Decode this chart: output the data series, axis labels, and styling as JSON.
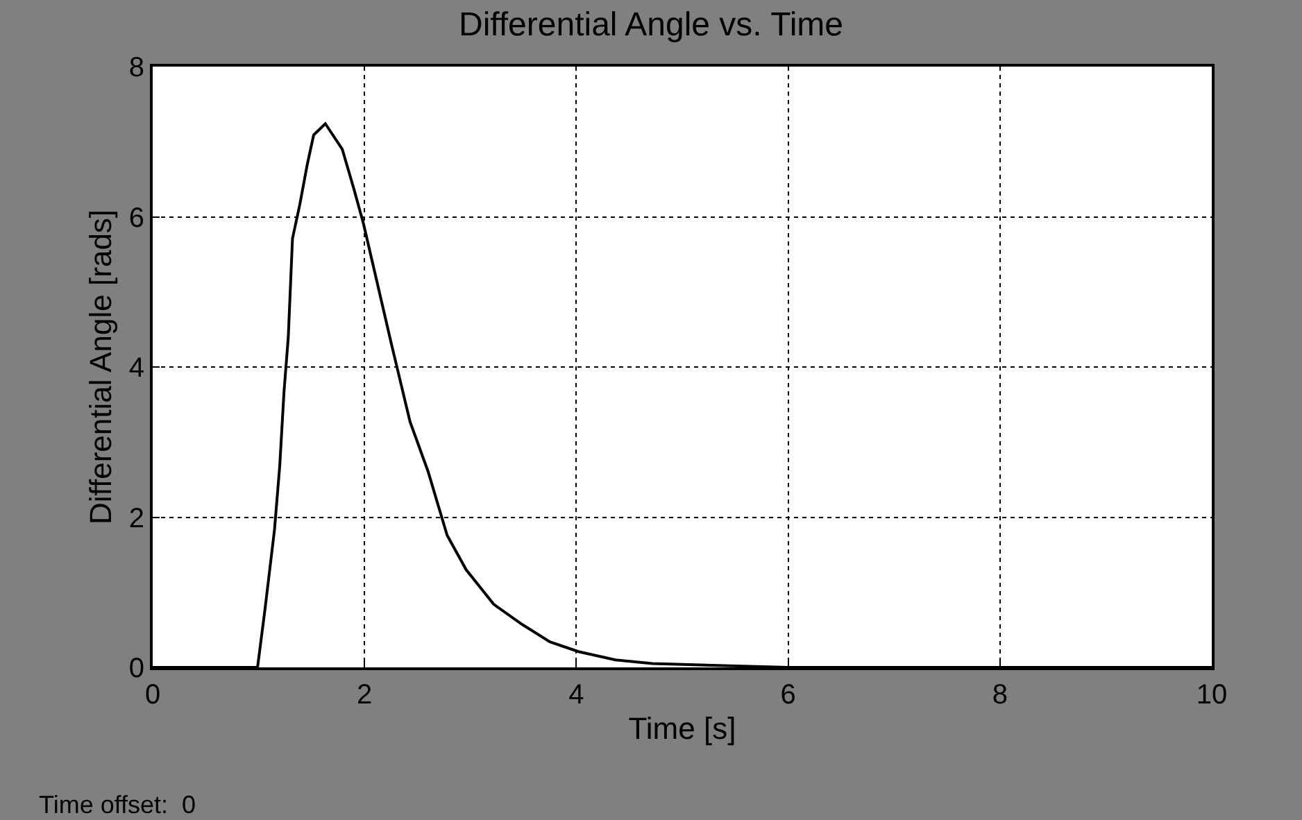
{
  "chart_data": {
    "type": "line",
    "title": "Differential Angle vs. Time",
    "xlabel": "Time [s]",
    "ylabel": "Differential Angle [rads]",
    "annotations": [
      "Time offset:  0"
    ],
    "x": [
      0,
      0.99,
      1.06,
      1.15,
      1.2,
      1.24,
      1.28,
      1.32,
      1.39,
      1.46,
      1.52,
      1.63,
      1.79,
      1.9,
      1.99,
      2.12,
      2.25,
      2.43,
      2.6,
      2.78,
      2.96,
      3.22,
      3.49,
      3.75,
      4.02,
      4.37,
      4.72,
      6,
      8,
      10
    ],
    "series": [
      {
        "color": "#000000",
        "values": [
          0,
          0,
          0.77,
          1.83,
          2.69,
          3.67,
          4.39,
          5.71,
          6.17,
          6.7,
          7.09,
          7.24,
          6.9,
          6.37,
          5.91,
          5.12,
          4.33,
          3.27,
          2.61,
          1.76,
          1.3,
          0.84,
          0.57,
          0.34,
          0.21,
          0.1,
          0.05,
          0,
          0,
          0
        ]
      }
    ],
    "xlim": [
      0,
      10
    ],
    "ylim": [
      0,
      8
    ],
    "xticks": [
      0,
      2,
      4,
      6,
      8,
      10
    ],
    "yticks": [
      0,
      2,
      4,
      6,
      8
    ],
    "grid": true,
    "line_style": "solid",
    "marker": "none"
  }
}
